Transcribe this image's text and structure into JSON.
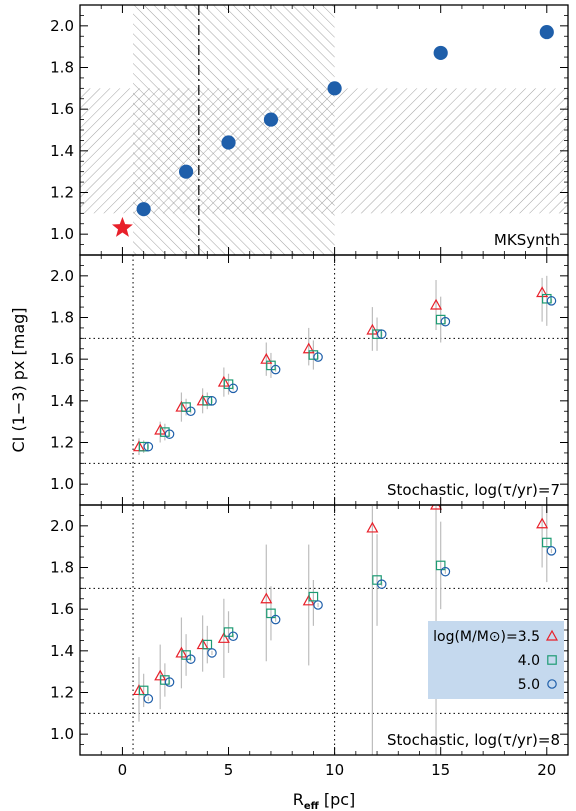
{
  "chart_data": [
    {
      "type": "scatter",
      "panel_label": "MKSynth",
      "xlim": [
        -2,
        21
      ],
      "ylim": [
        0.9,
        2.1
      ],
      "yticks": [
        "1.0",
        "1.2",
        "1.4",
        "1.6",
        "1.8",
        "2.0"
      ],
      "ytick_values": [
        1.0,
        1.2,
        1.4,
        1.6,
        1.8,
        2.0
      ],
      "vertical_dashdot_line_x": 3.6,
      "hatched_regions": [
        {
          "x_range": [
            0.5,
            10
          ],
          "y_range": [
            0.9,
            2.1
          ],
          "hatch": "backslash"
        },
        {
          "x_range": [
            -2,
            21
          ],
          "y_range": [
            1.1,
            1.7
          ],
          "hatch": "slash"
        }
      ],
      "series": [
        {
          "marker": "circle",
          "color": "#1f5faa",
          "x": [
            1,
            3,
            5,
            7,
            10,
            15,
            20
          ],
          "y": [
            1.12,
            1.3,
            1.44,
            1.55,
            1.7,
            1.87,
            1.97
          ]
        },
        {
          "marker": "star",
          "color": "#e8202a",
          "x": [
            0
          ],
          "y": [
            1.03
          ]
        }
      ]
    },
    {
      "type": "scatter",
      "panel_label": "Stochastic, log(τ/yr)=7",
      "xlim": [
        -2,
        21
      ],
      "ylim": [
        0.9,
        2.1
      ],
      "yticks": [
        "1.0",
        "1.2",
        "1.4",
        "1.6",
        "1.8",
        "2.0"
      ],
      "ytick_values": [
        1.0,
        1.2,
        1.4,
        1.6,
        1.8,
        2.0
      ],
      "reference_lines": {
        "x": [
          0.5,
          10
        ],
        "y": [
          1.1,
          1.7
        ]
      },
      "x": [
        1,
        2,
        3,
        4,
        5,
        7,
        9,
        12,
        15,
        20
      ],
      "series": [
        {
          "mass": 3.5,
          "marker": "triangle",
          "color": "#e8202a",
          "offset": -0.22,
          "y": [
            1.18,
            1.26,
            1.37,
            1.4,
            1.49,
            1.6,
            1.65,
            1.74,
            1.86,
            1.92
          ],
          "err_low": [
            1.14,
            1.2,
            1.3,
            1.34,
            1.42,
            1.52,
            1.57,
            1.64,
            1.74,
            1.78
          ],
          "err_high": [
            1.22,
            1.3,
            1.44,
            1.46,
            1.56,
            1.68,
            1.75,
            1.85,
            1.98,
            1.99
          ]
        },
        {
          "mass": 4.0,
          "marker": "square",
          "color": "#1d9b73",
          "offset": 0.0,
          "y": [
            1.18,
            1.25,
            1.37,
            1.4,
            1.48,
            1.57,
            1.62,
            1.72,
            1.79,
            1.89
          ],
          "err_low": [
            1.15,
            1.21,
            1.33,
            1.36,
            1.43,
            1.51,
            1.55,
            1.64,
            1.68,
            1.76
          ],
          "err_high": [
            1.21,
            1.29,
            1.41,
            1.44,
            1.53,
            1.63,
            1.69,
            1.8,
            1.9,
            2.0
          ]
        },
        {
          "mass": 5.0,
          "marker": "circle",
          "color": "#1f5faa",
          "offset": 0.22,
          "y": [
            1.18,
            1.24,
            1.35,
            1.4,
            1.46,
            1.55,
            1.61,
            1.72,
            1.78,
            1.88
          ],
          "err_low": [
            1.17,
            1.23,
            1.34,
            1.39,
            1.45,
            1.54,
            1.6,
            1.71,
            1.77,
            1.87
          ],
          "err_high": [
            1.19,
            1.25,
            1.36,
            1.41,
            1.47,
            1.56,
            1.62,
            1.73,
            1.79,
            1.89
          ]
        }
      ]
    },
    {
      "type": "scatter",
      "panel_label": "Stochastic, log(τ/yr)=8",
      "xlim": [
        -2,
        21
      ],
      "ylim": [
        0.9,
        2.1
      ],
      "yticks": [
        "1.0",
        "1.2",
        "1.4",
        "1.6",
        "1.8",
        "2.0"
      ],
      "ytick_values": [
        1.0,
        1.2,
        1.4,
        1.6,
        1.8,
        2.0
      ],
      "xticks": [
        "0",
        "5",
        "10",
        "15",
        "20"
      ],
      "xtick_values": [
        0,
        5,
        10,
        15,
        20
      ],
      "reference_lines": {
        "x": [
          0.5,
          10
        ],
        "y": [
          1.1,
          1.7
        ]
      },
      "x": [
        1,
        2,
        3,
        4,
        5,
        7,
        9,
        12,
        15,
        20
      ],
      "series": [
        {
          "mass": 3.5,
          "marker": "triangle",
          "color": "#e8202a",
          "offset": -0.22,
          "y": [
            1.21,
            1.28,
            1.39,
            1.43,
            1.46,
            1.65,
            1.64,
            1.99,
            2.1,
            2.01
          ],
          "err_low": [
            1.06,
            1.12,
            1.22,
            1.3,
            1.27,
            1.35,
            1.33,
            0.9,
            0.9,
            1.8
          ],
          "err_high": [
            1.37,
            1.43,
            1.56,
            1.57,
            1.65,
            1.91,
            1.91,
            2.1,
            2.1,
            2.1
          ]
        },
        {
          "mass": 4.0,
          "marker": "square",
          "color": "#1d9b73",
          "offset": 0.0,
          "y": [
            1.21,
            1.26,
            1.38,
            1.43,
            1.49,
            1.58,
            1.66,
            1.74,
            1.81,
            1.92
          ],
          "err_low": [
            1.13,
            1.18,
            1.28,
            1.34,
            1.39,
            1.45,
            1.52,
            1.52,
            1.6,
            1.73
          ],
          "err_high": [
            1.29,
            1.34,
            1.48,
            1.52,
            1.59,
            1.71,
            1.74,
            1.96,
            2.02,
            2.1
          ]
        },
        {
          "mass": 5.0,
          "marker": "circle",
          "color": "#1f5faa",
          "offset": 0.22,
          "y": [
            1.17,
            1.25,
            1.36,
            1.39,
            1.47,
            1.55,
            1.62,
            1.72,
            1.78,
            1.88
          ],
          "err_low": [
            1.16,
            1.24,
            1.35,
            1.38,
            1.46,
            1.54,
            1.61,
            1.71,
            1.77,
            1.87
          ],
          "err_high": [
            1.18,
            1.26,
            1.37,
            1.4,
            1.48,
            1.56,
            1.63,
            1.73,
            1.79,
            1.89
          ]
        }
      ],
      "legend": {
        "placement": "lower-right",
        "background": "#c5d9ee",
        "entries": [
          {
            "label": "log(M/M⊙)=3.5",
            "marker": "triangle",
            "color": "#e8202a"
          },
          {
            "label": "4.0",
            "marker": "square",
            "color": "#1d9b73"
          },
          {
            "label": "5.0",
            "marker": "circle",
            "color": "#1f5faa"
          }
        ]
      }
    }
  ],
  "axes": {
    "ylabel": "CI (1−3) px [mag]",
    "xlabel_main": "R",
    "xlabel_sub": "eff",
    "xlabel_unit": " [pc]"
  }
}
